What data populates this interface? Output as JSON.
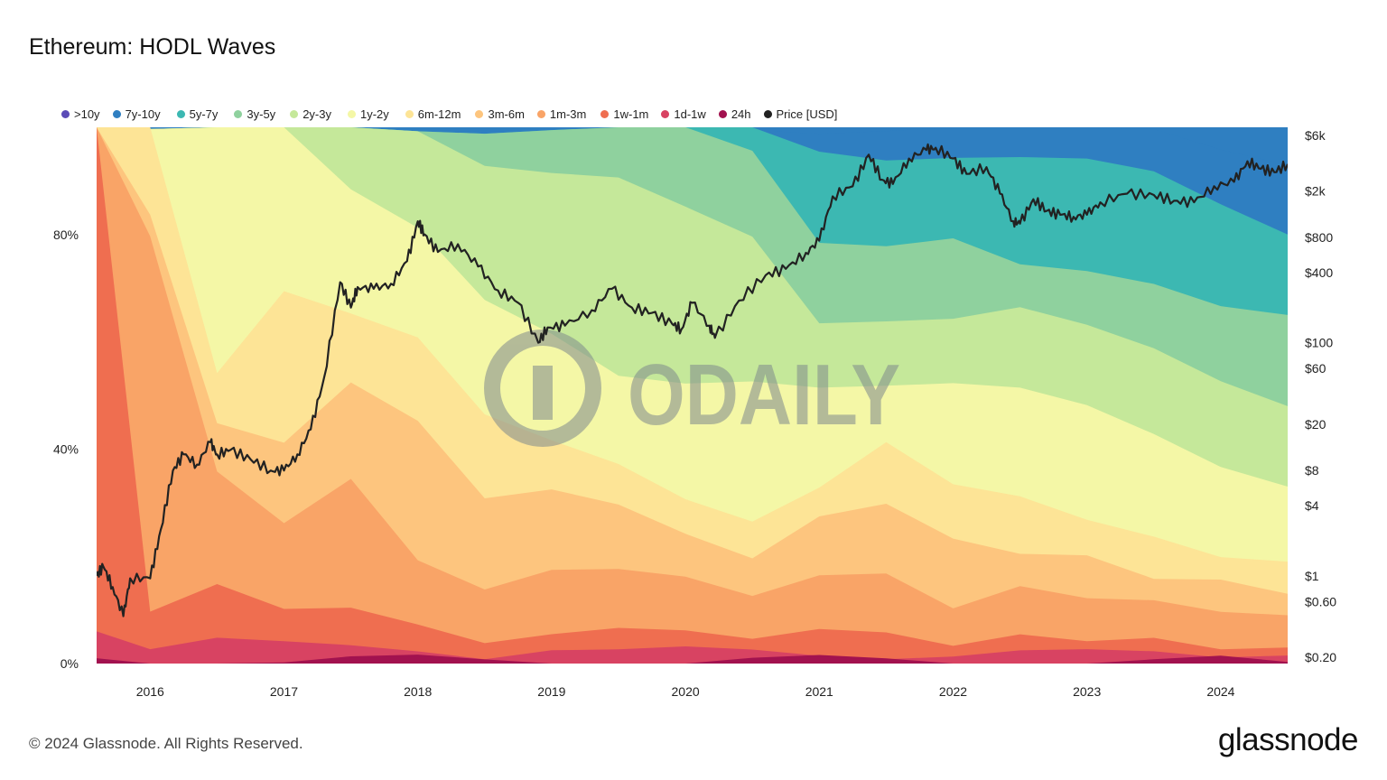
{
  "title": "Ethereum: HODL Waves",
  "footer": "© 2024 Glassnode. All Rights Reserved.",
  "brand": "glassnode",
  "watermark": "ODAILY",
  "chart_data": {
    "type": "area",
    "title": "Ethereum: HODL Waves",
    "legend_position": "top-left",
    "grid": false,
    "x_ticks": [
      "2016",
      "2017",
      "2018",
      "2019",
      "2020",
      "2021",
      "2022",
      "2023",
      "2024"
    ],
    "x_range": [
      2015.6,
      2024.5
    ],
    "y_left_ticks": [
      "0%",
      "40%",
      "80%"
    ],
    "y_left_range": [
      0,
      100
    ],
    "y_right_scale": "log",
    "y_right_ticks": [
      "$0.20",
      "$0.60",
      "$1",
      "$4",
      "$8",
      "$20",
      "$60",
      "$100",
      "$400",
      "$800",
      "$2k",
      "$6k"
    ],
    "series": [
      {
        "name": ">10y",
        "color": "#5b4bb7"
      },
      {
        "name": "7y-10y",
        "color": "#2f7fc1"
      },
      {
        "name": "5y-7y",
        "color": "#3cb8b2"
      },
      {
        "name": "3y-5y",
        "color": "#8fd19e"
      },
      {
        "name": "2y-3y",
        "color": "#c5e89a"
      },
      {
        "name": "1y-2y",
        "color": "#f4f7a6"
      },
      {
        "name": "6m-12m",
        "color": "#fde496"
      },
      {
        "name": "3m-6m",
        "color": "#fdc57e"
      },
      {
        "name": "1m-3m",
        "color": "#f9a467"
      },
      {
        "name": "1w-1m",
        "color": "#ef6e50"
      },
      {
        "name": "1d-1w",
        "color": "#d84362"
      },
      {
        "name": "24h",
        "color": "#a2124f"
      },
      {
        "name": "Price [USD]",
        "color": "#222222"
      }
    ],
    "bands_boundaries_pct": {
      "x": [
        2015.6,
        2016.0,
        2016.5,
        2017.0,
        2017.5,
        2018.0,
        2018.5,
        2019.0,
        2019.5,
        2020.0,
        2020.5,
        2021.0,
        2021.5,
        2022.0,
        2022.5,
        2023.0,
        2023.5,
        2024.0,
        2024.5
      ],
      "7y-10y": [
        100,
        100,
        100,
        100,
        100,
        100,
        100,
        100,
        100,
        100,
        100,
        100,
        100,
        100,
        100,
        100,
        100,
        97,
        93
      ],
      "5y-7y": [
        100,
        100,
        100,
        100,
        100,
        100,
        100,
        100,
        100,
        100,
        100,
        96,
        95,
        95,
        94,
        93,
        91,
        86,
        80
      ],
      "3y-5y": [
        100,
        100,
        100,
        100,
        100,
        100,
        100,
        100,
        100,
        100,
        95,
        79,
        79,
        80,
        74,
        72,
        70,
        67,
        65
      ],
      "2y-3y": [
        100,
        100,
        100,
        100,
        100,
        100,
        94,
        92,
        90,
        84,
        79,
        64,
        65,
        65,
        66,
        62,
        58,
        53,
        48
      ],
      "1y-2y": [
        100,
        100,
        100,
        100,
        88,
        82,
        69,
        62,
        53,
        51,
        52,
        52,
        53,
        53,
        51,
        47,
        42,
        37,
        33
      ],
      "6m-12m": [
        100,
        100,
        53,
        69,
        66,
        62,
        47,
        41,
        36,
        30,
        27,
        34,
        42,
        33,
        30,
        26,
        24,
        21,
        19
      ],
      "3m-6m": [
        100,
        84,
        44,
        40,
        52,
        46,
        32,
        33,
        29,
        23,
        19,
        28,
        31,
        24,
        20,
        19,
        15,
        16,
        13
      ],
      "1m-3m": [
        100,
        80,
        35,
        25,
        34,
        20,
        15,
        18,
        17,
        15,
        12,
        17,
        18,
        11,
        14,
        11,
        11,
        10,
        9
      ],
      "1w-1m": [
        100,
        10,
        14,
        9,
        10,
        8,
        5,
        6,
        6,
        5,
        4,
        7,
        7,
        4,
        5,
        3,
        4,
        3,
        3
      ],
      "1d-1w": [
        6,
        3,
        4,
        3,
        3,
        3,
        2,
        3,
        2,
        2,
        2,
        2,
        2,
        2,
        2,
        1.5,
        1.5,
        1.5,
        1.5
      ],
      "24h": [
        1,
        0.5,
        0.8,
        0.5,
        0.5,
        0.5,
        0.4,
        0.5,
        0.4,
        0.4,
        0.4,
        0.4,
        0.4,
        0.4,
        0.4,
        0.3,
        0.3,
        0.3,
        0.3
      ]
    },
    "price_usd": {
      "x": [
        2015.6,
        2015.65,
        2015.72,
        2015.8,
        2015.85,
        2016.0,
        2016.08,
        2016.17,
        2016.25,
        2016.35,
        2016.45,
        2016.5,
        2016.6,
        2016.75,
        2016.9,
        2017.0,
        2017.1,
        2017.2,
        2017.3,
        2017.42,
        2017.5,
        2017.55,
        2017.67,
        2017.8,
        2017.92,
        2018.0,
        2018.05,
        2018.15,
        2018.3,
        2018.45,
        2018.6,
        2018.75,
        2018.9,
        2018.97,
        2019.1,
        2019.3,
        2019.45,
        2019.6,
        2019.75,
        2019.9,
        2019.97,
        2020.05,
        2020.18,
        2020.22,
        2020.4,
        2020.6,
        2020.75,
        2020.9,
        2021.0,
        2021.1,
        2021.25,
        2021.37,
        2021.47,
        2021.55,
        2021.67,
        2021.8,
        2021.87,
        2022.0,
        2022.1,
        2022.25,
        2022.35,
        2022.45,
        2022.5,
        2022.6,
        2022.7,
        2022.8,
        2022.9,
        2023.0,
        2023.1,
        2023.3,
        2023.5,
        2023.65,
        2023.8,
        2023.95,
        2024.1,
        2024.2,
        2024.3,
        2024.4,
        2024.5
      ],
      "y": [
        1.0,
        1.2,
        0.8,
        0.45,
        0.95,
        0.95,
        2.5,
        8,
        11,
        9,
        14,
        11,
        12,
        10,
        8,
        8,
        11,
        18,
        50,
        330,
        200,
        300,
        290,
        320,
        500,
        1100,
        850,
        600,
        700,
        450,
        280,
        220,
        100,
        135,
        140,
        190,
        290,
        200,
        180,
        145,
        130,
        220,
        140,
        110,
        230,
        380,
        430,
        590,
        750,
        1800,
        2200,
        4100,
        2500,
        2300,
        3800,
        4500,
        4700,
        3800,
        2800,
        3200,
        1900,
        1100,
        1050,
        1700,
        1350,
        1250,
        1200,
        1250,
        1600,
        1900,
        1850,
        1650,
        1600,
        2200,
        2400,
        3600,
        3100,
        2900,
        3400
      ]
    }
  }
}
